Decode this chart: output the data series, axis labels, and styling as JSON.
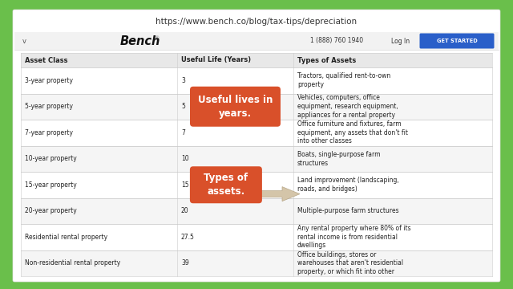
{
  "url_text": "https://www.bench.co/blog/tax-tips/depreciation",
  "outer_bg": "#6abf4b",
  "inner_bg": "#ffffff",
  "bench_text": "Bench",
  "phone": "1 (888) 760 1940",
  "login": "Log In",
  "get_started": "GET STARTED",
  "get_started_bg": "#2a5fc9",
  "header_cols": [
    "Asset Class",
    "Useful Life (Years)",
    "Types of Assets"
  ],
  "header_bg": "#e8e8e8",
  "rows": [
    [
      "3-year property",
      "3",
      "Tractors, qualified rent-to-own\nproperty"
    ],
    [
      "5-year property",
      "5",
      "Vehicles, computers, office\nequipment, research equipment,\nappliances for a rental property"
    ],
    [
      "7-year property",
      "7",
      "Office furniture and fixtures, farm\nequipment, any assets that don't fit\ninto other classes"
    ],
    [
      "10-year property",
      "10",
      "Boats, single-purpose farm\nstructures"
    ],
    [
      "15-year property",
      "15",
      "Land improvement (landscaping,\nroads, and bridges)"
    ],
    [
      "20-year property",
      "20",
      "Multiple-purpose farm structures"
    ],
    [
      "Residential rental property",
      "27.5",
      "Any rental property where 80% of its\nrental income is from residential\ndwellings"
    ],
    [
      "Non-residential rental property",
      "39",
      "Office buildings, stores or\nwarehouses that aren't residential\nproperty, or which fit into other"
    ]
  ],
  "row_bg_even": "#ffffff",
  "row_bg_odd": "#f5f5f5",
  "callout1_text": "Useful lives in\nyears.",
  "callout1_bg": "#d9502a",
  "callout2_text": "Types of\nassets.",
  "callout2_bg": "#d9502a",
  "arrow_fill": "#d4c5a9",
  "arrow_edge": "#b8a88a",
  "url_fontsize": 7.5,
  "nav_fontsize": 7.0,
  "bench_fontsize": 10.5,
  "header_fontsize": 6.0,
  "cell_fontsize": 5.5,
  "callout_fontsize": 8.5
}
